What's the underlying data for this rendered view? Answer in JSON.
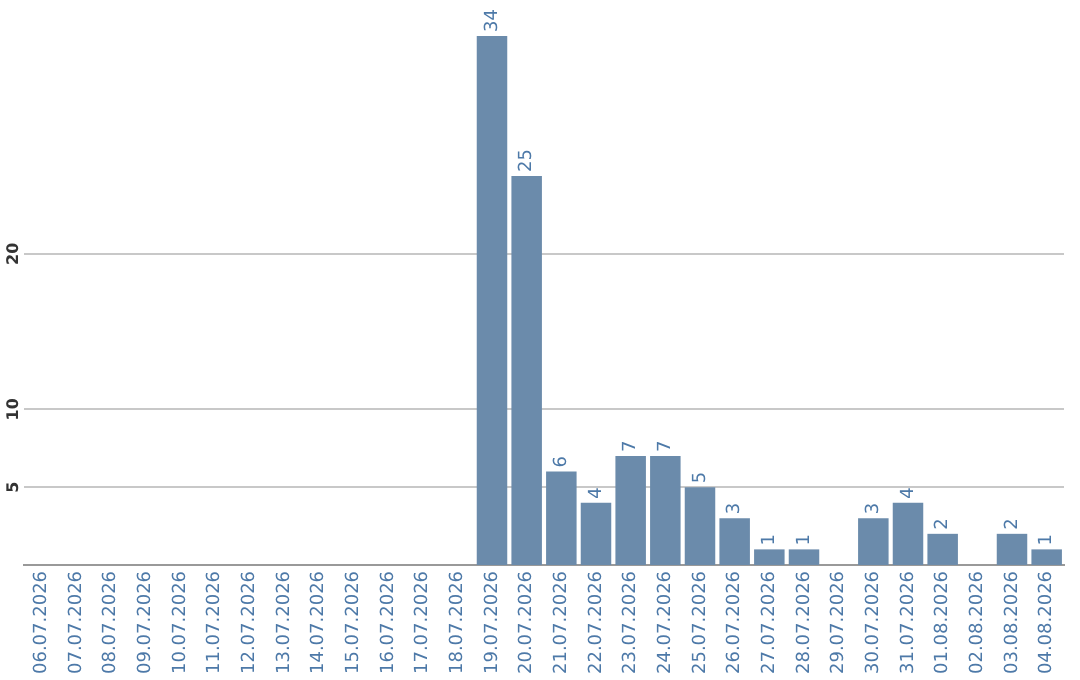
{
  "chart_data": {
    "type": "bar",
    "categories": [
      "06.07.2026",
      "07.07.2026",
      "08.07.2026",
      "09.07.2026",
      "10.07.2026",
      "11.07.2026",
      "12.07.2026",
      "13.07.2026",
      "14.07.2026",
      "15.07.2026",
      "16.07.2026",
      "17.07.2026",
      "18.07.2026",
      "19.07.2026",
      "20.07.2026",
      "21.07.2026",
      "22.07.2026",
      "23.07.2026",
      "24.07.2026",
      "25.07.2026",
      "26.07.2026",
      "27.07.2026",
      "28.07.2026",
      "29.07.2026",
      "30.07.2026",
      "31.07.2026",
      "01.08.2026",
      "02.08.2026",
      "03.08.2026",
      "04.08.2026"
    ],
    "values": [
      null,
      null,
      null,
      null,
      null,
      null,
      null,
      null,
      null,
      null,
      null,
      null,
      null,
      34,
      25,
      6,
      4,
      7,
      7,
      5,
      3,
      1,
      1,
      null,
      3,
      4,
      2,
      null,
      2,
      1
    ],
    "color": "#6b8bab",
    "ylim": [
      0,
      34
    ],
    "yticks": [
      5,
      10,
      20
    ],
    "grid": "y",
    "data_labels": true,
    "legend": false
  }
}
